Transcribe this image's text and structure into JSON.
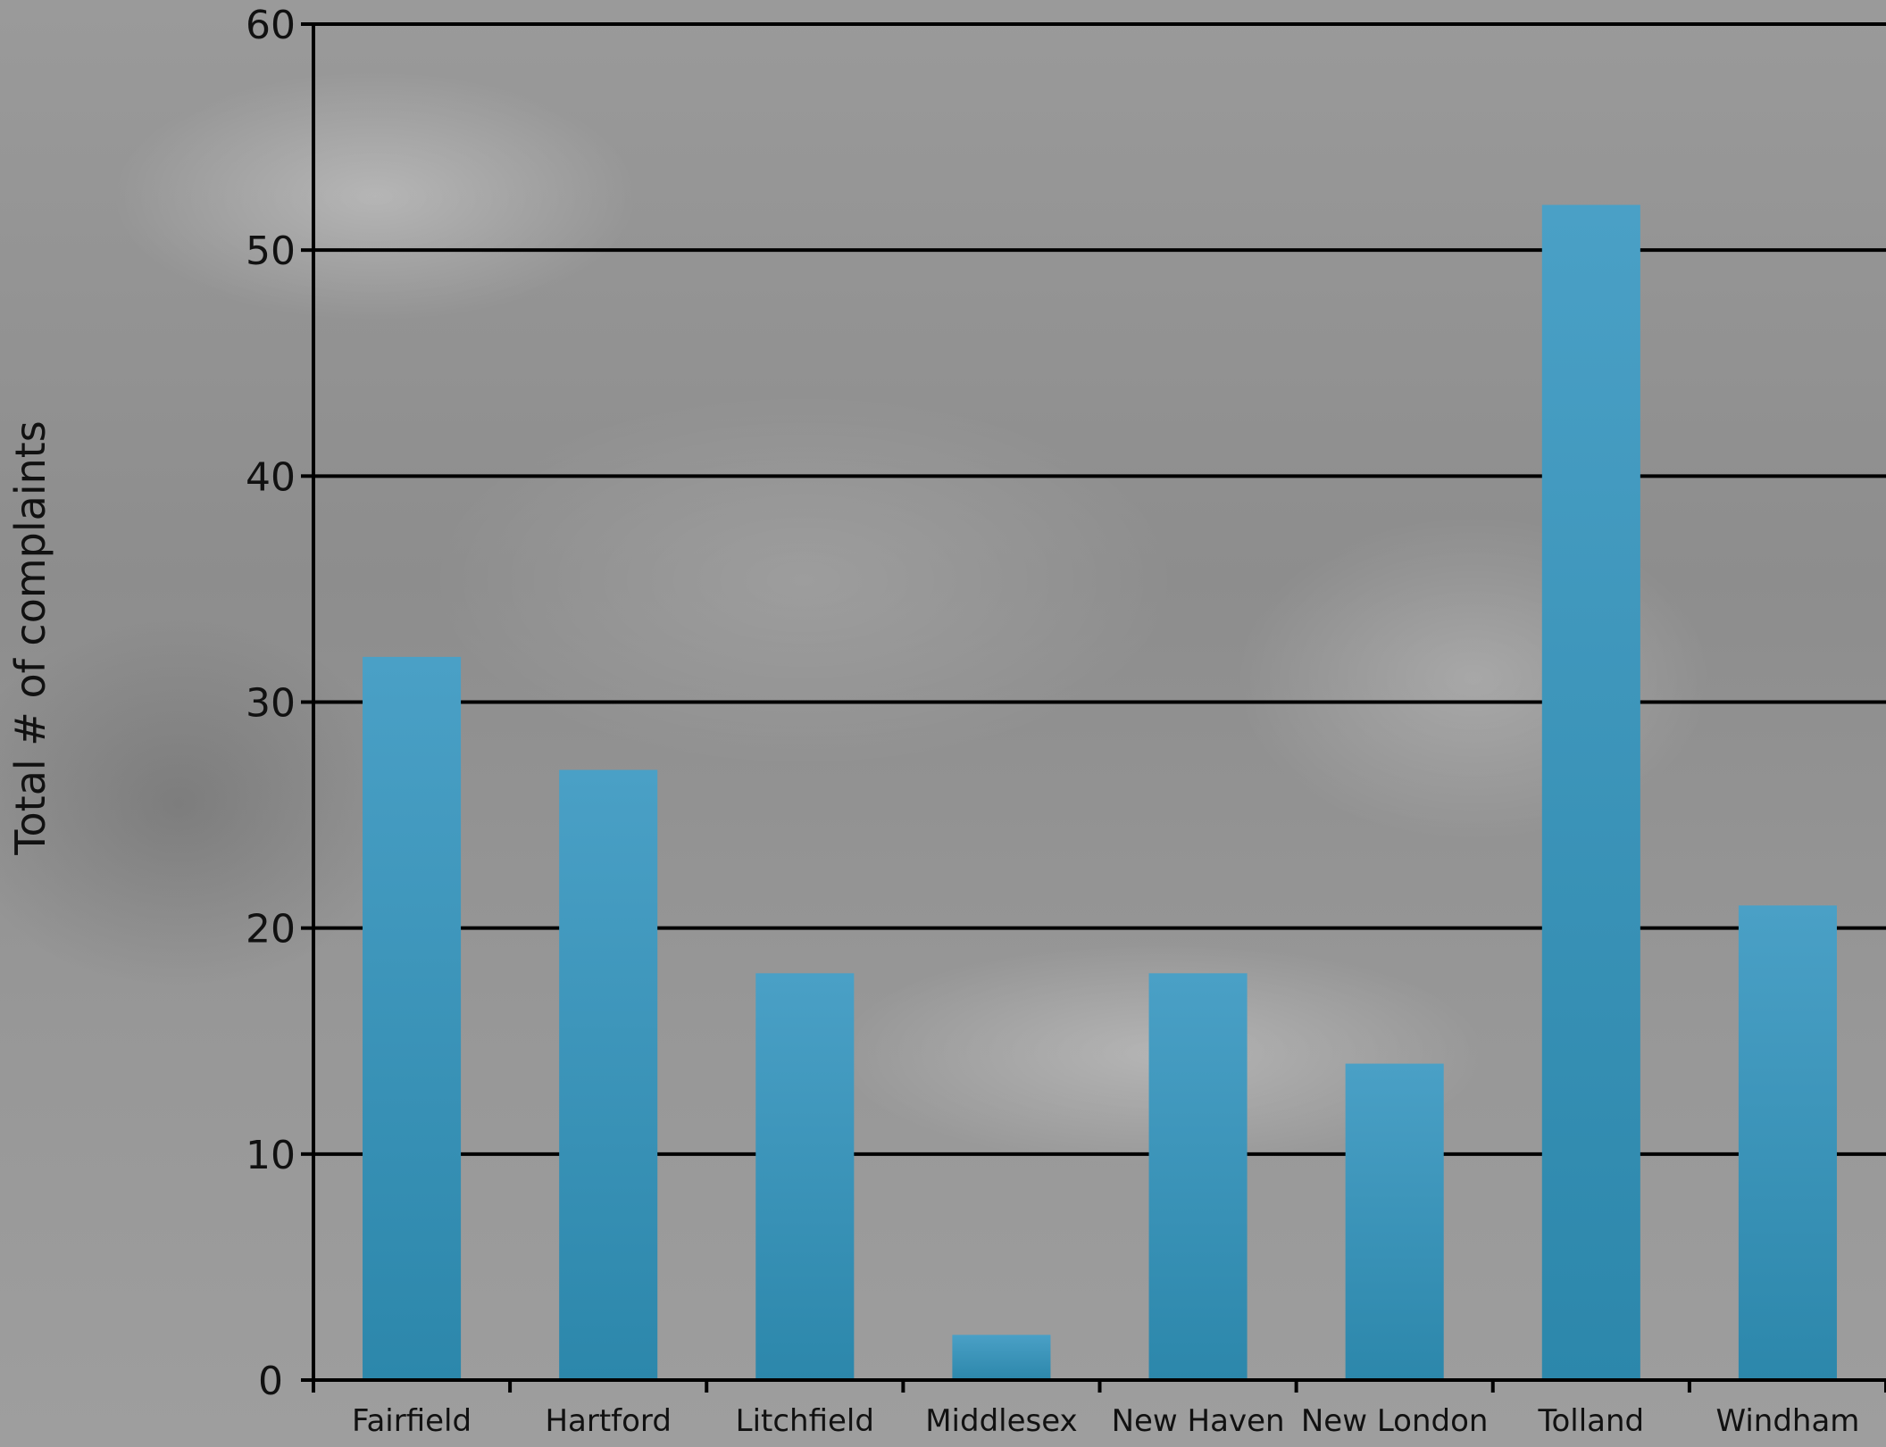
{
  "chart_data": {
    "type": "bar",
    "title": "",
    "xlabel": "",
    "ylabel": "Total # of complaints",
    "categories": [
      "Fairfield",
      "Hartford",
      "Litchfield",
      "Middlesex",
      "New Haven",
      "New London",
      "Tolland",
      "Windham"
    ],
    "values": [
      32,
      27,
      18,
      2,
      18,
      14,
      52,
      21
    ],
    "ylim": [
      0,
      60
    ],
    "yticks": [
      0,
      10,
      20,
      30,
      40,
      50,
      60
    ],
    "grid": "horizontal",
    "legend": "none",
    "colors": {
      "bar_top": "#4aa0c6",
      "bar_bottom": "#2c87ab",
      "grid": "#000000",
      "text": "#111111"
    }
  }
}
